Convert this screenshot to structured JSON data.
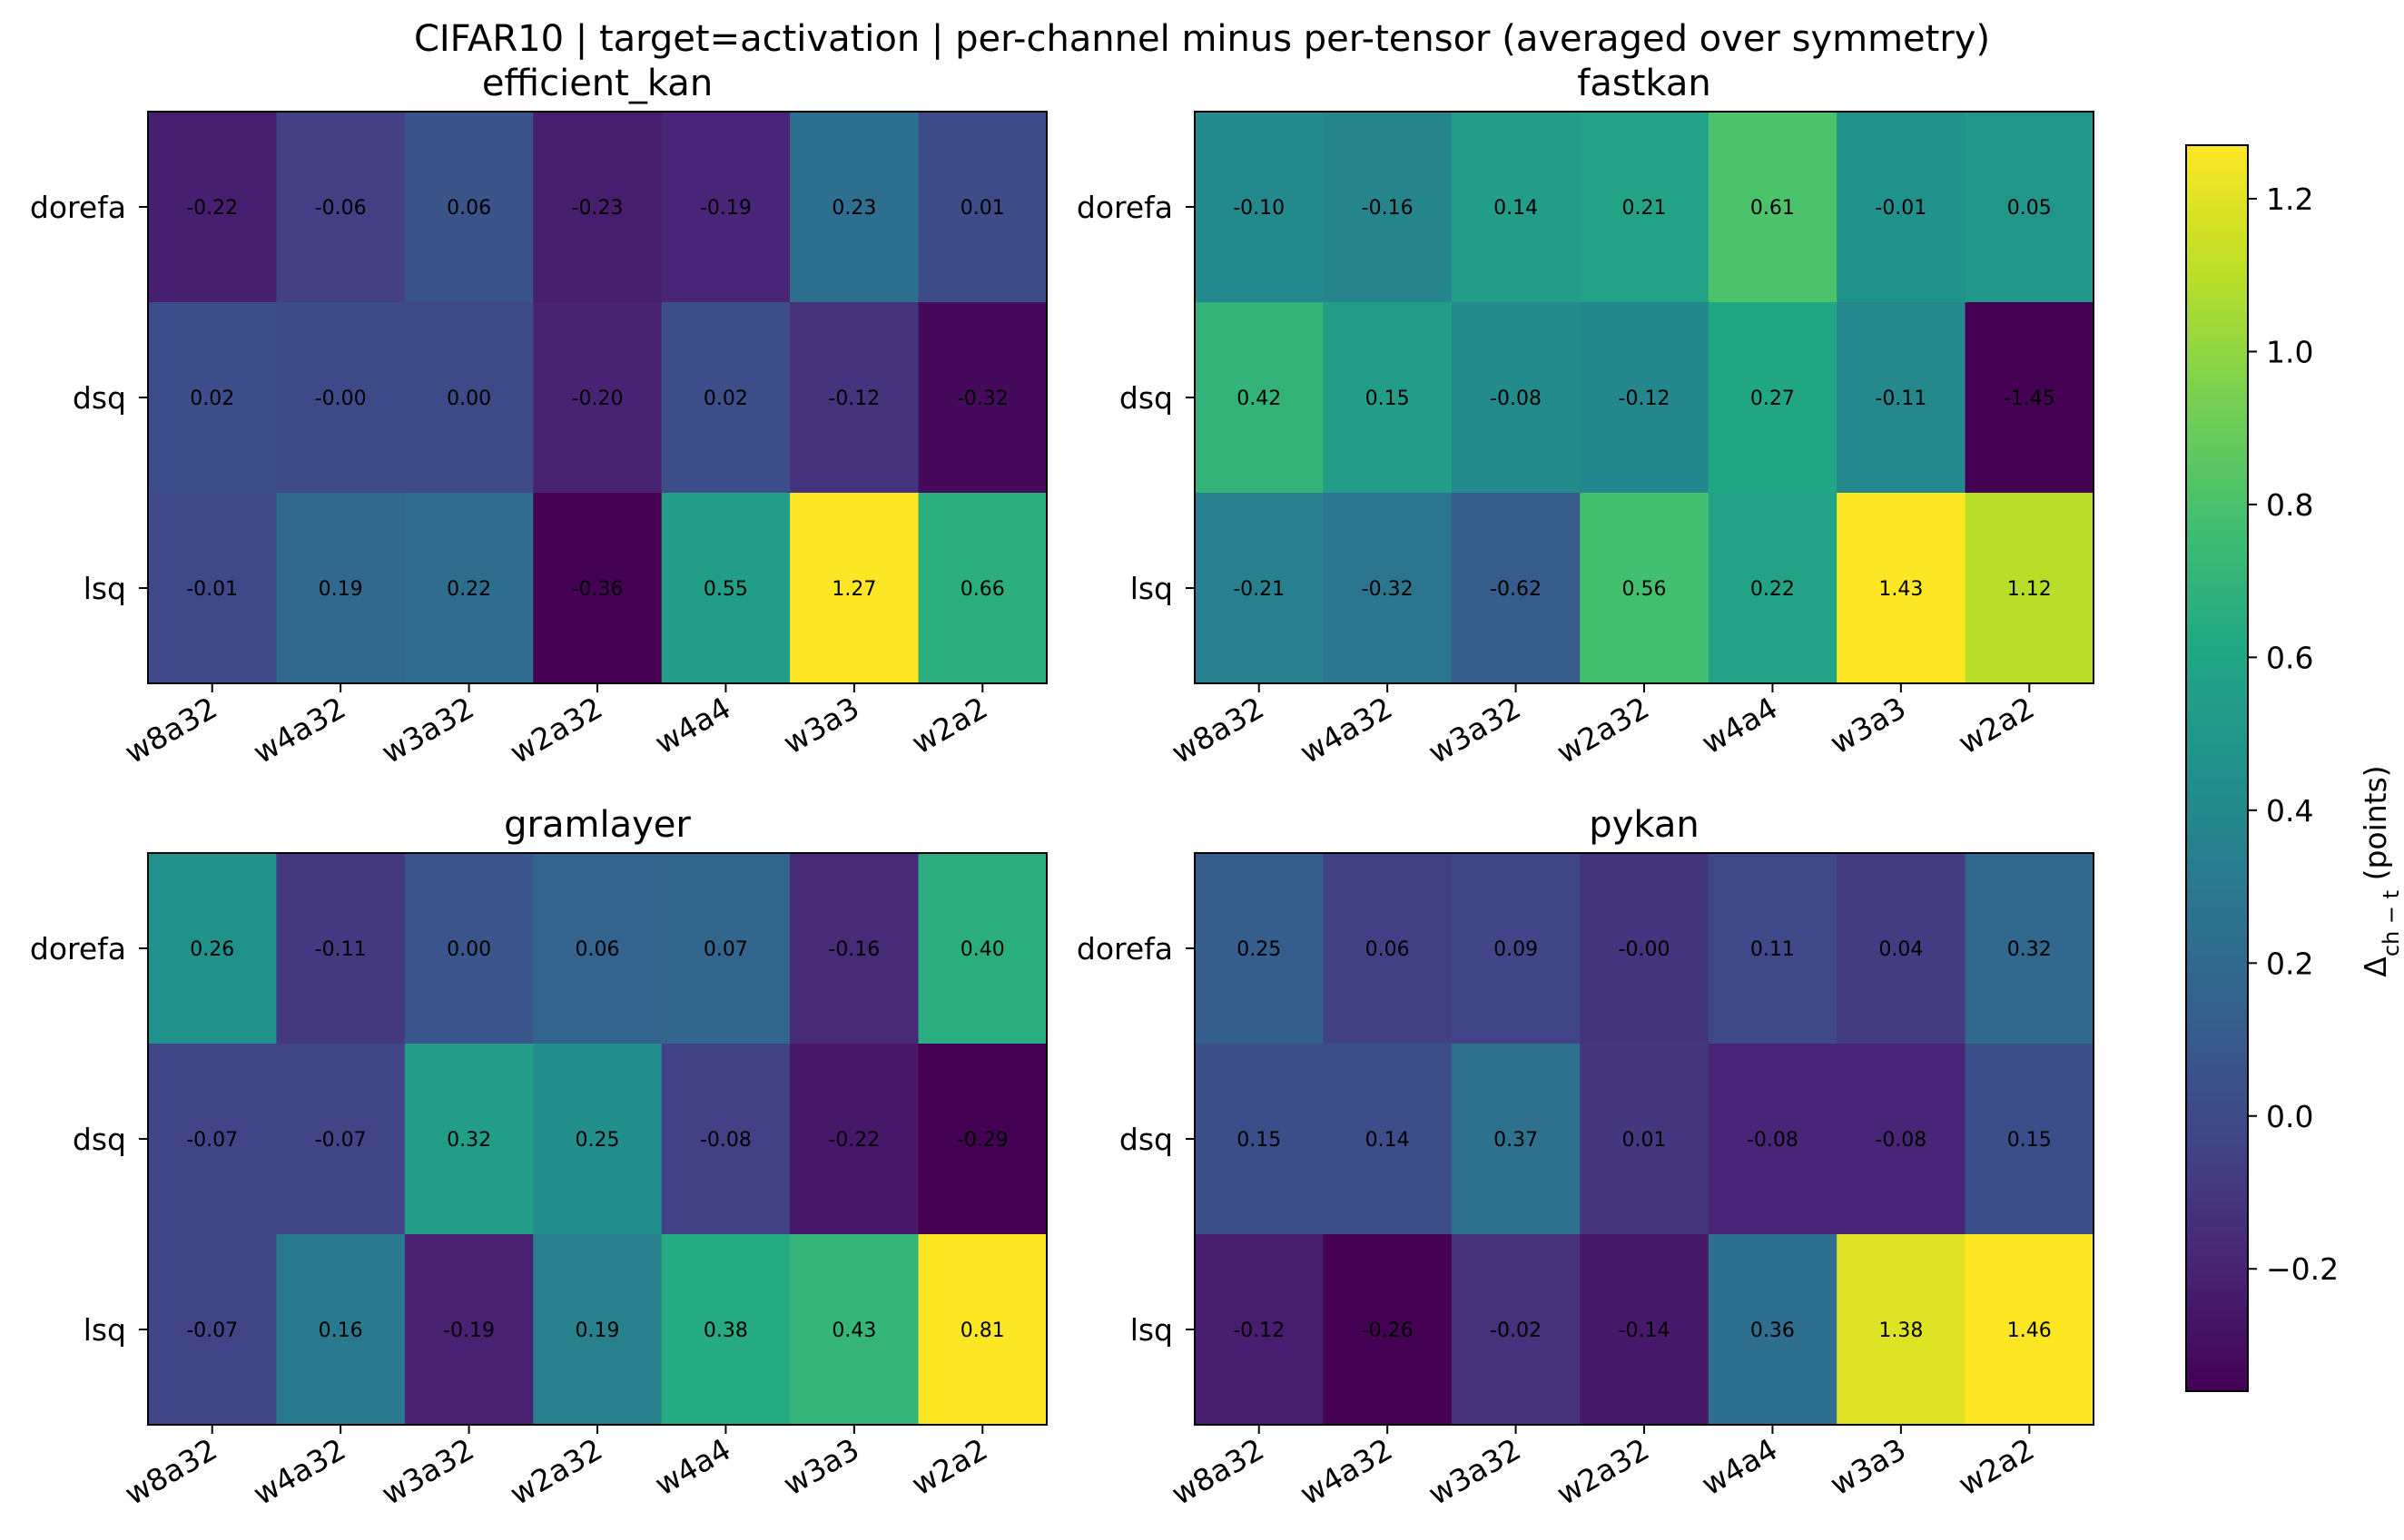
{
  "chart_data": {
    "type": "heatmap",
    "title": "CIFAR10 | target=activation | per-channel minus per-tensor (averaged over symmetry)",
    "colormap": "viridis",
    "colorbar": {
      "label_main": "Δ",
      "label_sub": "ch − t",
      "label_unit": " (points)",
      "vmin": -0.36,
      "vmax": 1.27,
      "ticks": [
        -0.2,
        0.0,
        0.2,
        0.4,
        0.6,
        0.8,
        1.0,
        1.2
      ],
      "tick_labels": [
        "−0.2",
        "0.0",
        "0.2",
        "0.4",
        "0.6",
        "0.8",
        "1.0",
        "1.2"
      ]
    },
    "panels": [
      {
        "title": "efficient_kan",
        "rows": [
          "dorefa",
          "dsq",
          "lsq"
        ],
        "cols": [
          "w8a32",
          "w4a32",
          "w3a32",
          "w2a32",
          "w4a4",
          "w3a3",
          "w2a2"
        ],
        "values": [
          [
            -0.22,
            -0.06,
            0.06,
            -0.23,
            -0.19,
            0.23,
            0.01
          ],
          [
            0.02,
            -0.0,
            0.0,
            -0.2,
            0.02,
            -0.12,
            -0.32
          ],
          [
            -0.01,
            0.19,
            0.22,
            -0.36,
            0.55,
            1.27,
            0.66
          ]
        ],
        "labels": [
          [
            "-0.22",
            "-0.06",
            "0.06",
            "-0.23",
            "-0.19",
            "0.23",
            "0.01"
          ],
          [
            "0.02",
            "-0.00",
            "0.00",
            "-0.20",
            "0.02",
            "-0.12",
            "-0.32"
          ],
          [
            "-0.01",
            "0.19",
            "0.22",
            "-0.36",
            "0.55",
            "1.27",
            "0.66"
          ]
        ]
      },
      {
        "title": "fastkan",
        "rows": [
          "dorefa",
          "dsq",
          "lsq"
        ],
        "cols": [
          "w8a32",
          "w4a32",
          "w3a32",
          "w2a32",
          "w4a4",
          "w3a3",
          "w2a2"
        ],
        "values": [
          [
            -0.1,
            -0.16,
            0.14,
            0.21,
            0.61,
            -0.01,
            0.05
          ],
          [
            0.42,
            0.15,
            -0.08,
            -0.12,
            0.27,
            -0.11,
            -1.45
          ],
          [
            -0.21,
            -0.32,
            -0.62,
            0.56,
            0.22,
            1.43,
            1.12
          ]
        ],
        "labels": [
          [
            "-0.10",
            "-0.16",
            "0.14",
            "0.21",
            "0.61",
            "-0.01",
            "0.05"
          ],
          [
            "0.42",
            "0.15",
            "-0.08",
            "-0.12",
            "0.27",
            "-0.11",
            "-1.45"
          ],
          [
            "-0.21",
            "-0.32",
            "-0.62",
            "0.56",
            "0.22",
            "1.43",
            "1.12"
          ]
        ]
      },
      {
        "title": "gramlayer",
        "rows": [
          "dorefa",
          "dsq",
          "lsq"
        ],
        "cols": [
          "w8a32",
          "w4a32",
          "w3a32",
          "w2a32",
          "w4a4",
          "w3a3",
          "w2a2"
        ],
        "values": [
          [
            0.26,
            -0.11,
            0.0,
            0.06,
            0.07,
            -0.16,
            0.4
          ],
          [
            -0.07,
            -0.07,
            0.32,
            0.25,
            -0.08,
            -0.22,
            -0.29
          ],
          [
            -0.07,
            0.16,
            -0.19,
            0.19,
            0.38,
            0.43,
            0.81
          ]
        ],
        "labels": [
          [
            "0.26",
            "-0.11",
            "0.00",
            "0.06",
            "0.07",
            "-0.16",
            "0.40"
          ],
          [
            "-0.07",
            "-0.07",
            "0.32",
            "0.25",
            "-0.08",
            "-0.22",
            "-0.29"
          ],
          [
            "-0.07",
            "0.16",
            "-0.19",
            "0.19",
            "0.38",
            "0.43",
            "0.81"
          ]
        ]
      },
      {
        "title": "pykan",
        "rows": [
          "dorefa",
          "dsq",
          "lsq"
        ],
        "cols": [
          "w8a32",
          "w4a32",
          "w3a32",
          "w2a32",
          "w4a4",
          "w3a3",
          "w2a2"
        ],
        "values": [
          [
            0.25,
            0.06,
            0.09,
            -0.0,
            0.11,
            0.04,
            0.32
          ],
          [
            0.15,
            0.14,
            0.37,
            0.01,
            -0.08,
            -0.08,
            0.15
          ],
          [
            -0.12,
            -0.26,
            -0.02,
            -0.14,
            0.36,
            1.38,
            1.46
          ]
        ],
        "labels": [
          [
            "0.25",
            "0.06",
            "0.09",
            "-0.00",
            "0.11",
            "0.04",
            "0.32"
          ],
          [
            "0.15",
            "0.14",
            "0.37",
            "0.01",
            "-0.08",
            "-0.08",
            "0.15"
          ],
          [
            "-0.12",
            "-0.26",
            "-0.02",
            "-0.14",
            "0.36",
            "1.38",
            "1.46"
          ]
        ]
      }
    ]
  }
}
